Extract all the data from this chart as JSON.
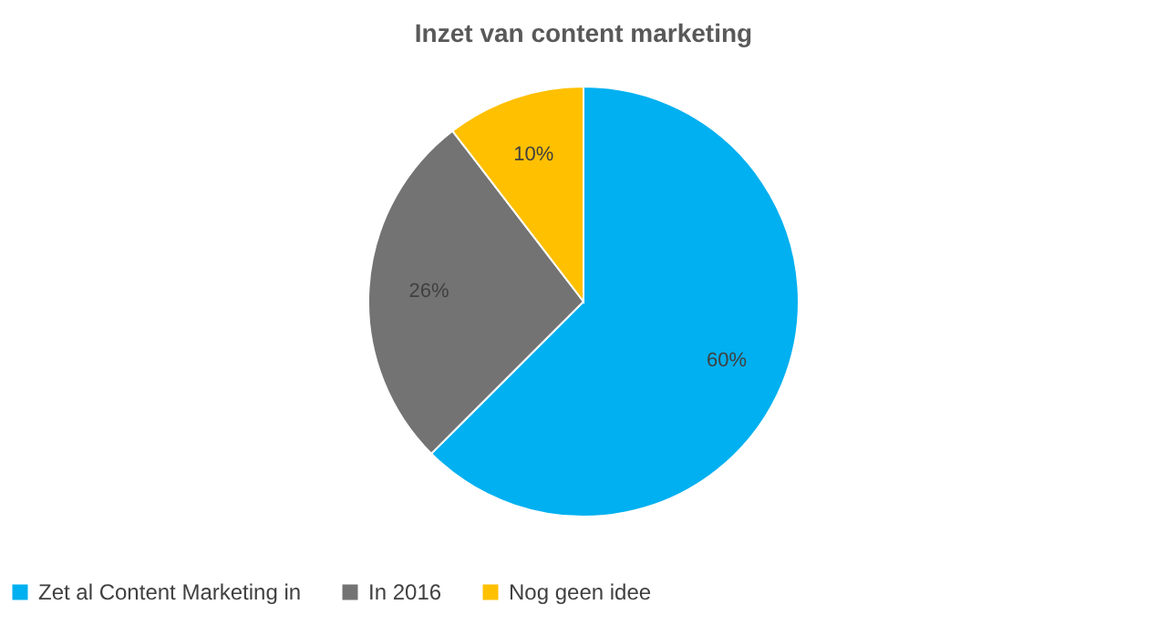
{
  "chart_data": {
    "type": "pie",
    "title": "Inzet van content marketing",
    "categories": [
      "Zet al Content Marketing in",
      "In 2016",
      "Nog geen idee"
    ],
    "values": [
      60,
      26,
      10
    ],
    "colors": [
      "#00b0f0",
      "#737373",
      "#ffc000"
    ],
    "value_labels": [
      "60%",
      "26%",
      "10%"
    ],
    "legend": "bottom"
  }
}
